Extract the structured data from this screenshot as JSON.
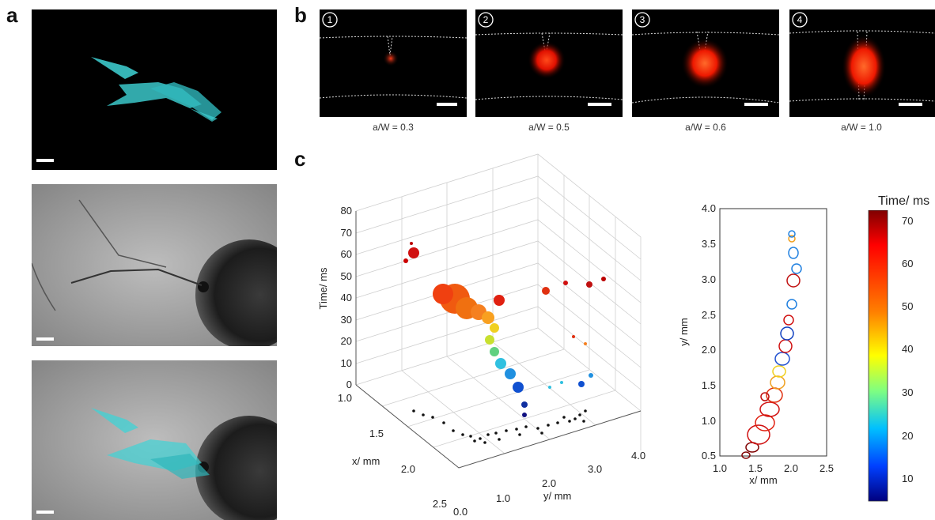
{
  "figure": {
    "panel_labels": {
      "a": "a",
      "b": "b",
      "c": "c"
    },
    "panel_b": {
      "frames": [
        {
          "number": "1",
          "caption": "a/W = 0.3",
          "crack_depth": 0.3
        },
        {
          "number": "2",
          "caption": "a/W = 0.5",
          "crack_depth": 0.5
        },
        {
          "number": "3",
          "caption": "a/W = 0.6",
          "crack_depth": 0.6
        },
        {
          "number": "4",
          "caption": "a/W = 1.0",
          "crack_depth": 1.0
        }
      ]
    },
    "panel_c_3d": {
      "z_axis_label": "Time/ ms",
      "x_axis_label": "x/ mm",
      "y_axis_label": "y/ mm",
      "z_ticks": [
        "0",
        "10",
        "20",
        "30",
        "40",
        "50",
        "60",
        "70",
        "80"
      ],
      "x_ticks": [
        "1.0",
        "1.5",
        "2.0",
        "2.5"
      ],
      "y_ticks": [
        "0.0",
        "1.0",
        "2.0",
        "3.0",
        "4.0"
      ]
    },
    "panel_c_2d": {
      "x_axis_label": "x/ mm",
      "y_axis_label": "y/ mm",
      "x_ticks": [
        "1.0",
        "1.5",
        "2.0",
        "2.5"
      ],
      "y_ticks": [
        "0.5",
        "1.0",
        "1.5",
        "2.0",
        "2.5",
        "3.0",
        "3.5",
        "4.0"
      ]
    },
    "colorbar": {
      "label": "Time/ ms",
      "ticks": [
        "10",
        "20",
        "30",
        "40",
        "50",
        "60",
        "70"
      ]
    },
    "colors": {
      "cyan": "#3fd3d6",
      "hot_red": "#ff2a00",
      "colorbar_top": "#7f0000",
      "colorbar_bottom": "#00007f"
    }
  }
}
